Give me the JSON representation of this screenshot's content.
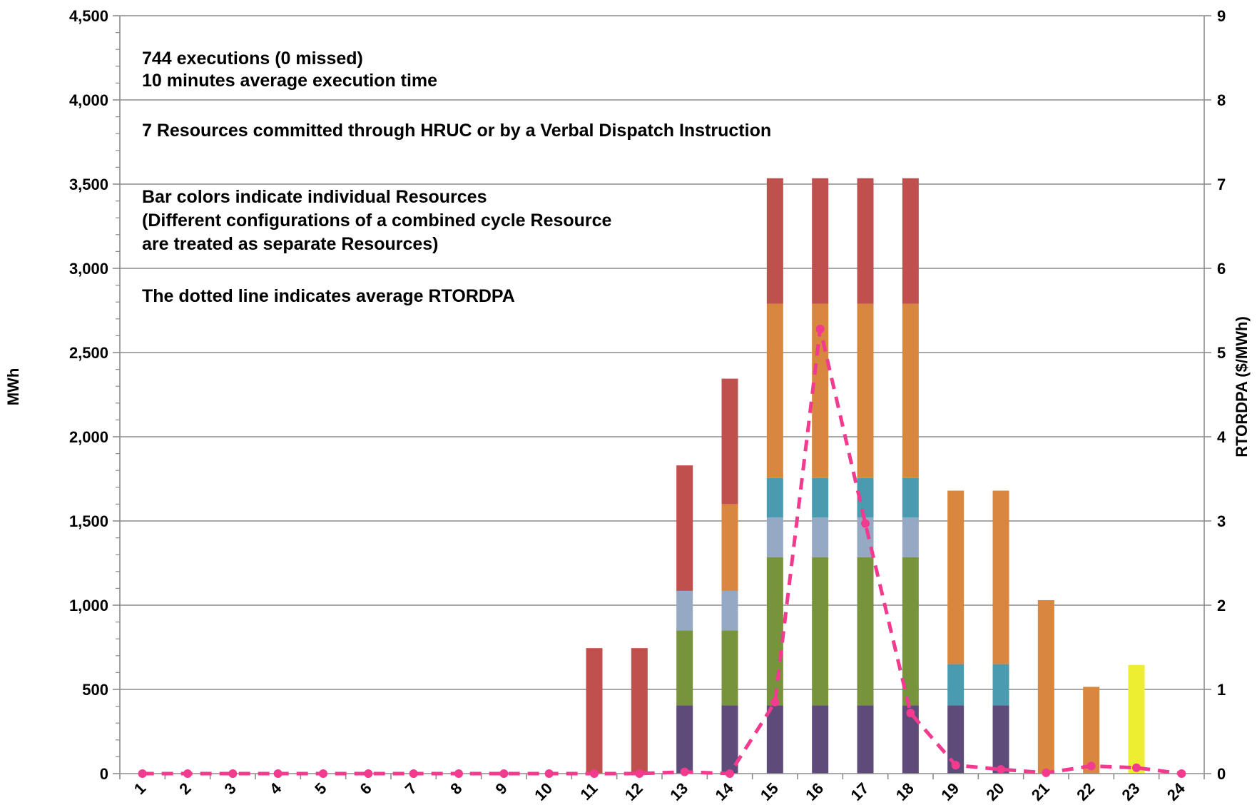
{
  "chart_data": {
    "type": "bar",
    "stacked": true,
    "categories": [
      "1",
      "2",
      "3",
      "4",
      "5",
      "6",
      "7",
      "8",
      "9",
      "10",
      "11",
      "12",
      "13",
      "14",
      "15",
      "16",
      "17",
      "18",
      "19",
      "20",
      "21",
      "22",
      "23",
      "24"
    ],
    "series": [
      {
        "color": "#5f4b7a",
        "values": [
          0,
          0,
          0,
          0,
          0,
          0,
          0,
          0,
          0,
          0,
          0,
          0,
          405,
          405,
          405,
          405,
          405,
          405,
          405,
          405,
          0,
          0,
          0,
          0
        ]
      },
      {
        "color": "#77933c",
        "values": [
          0,
          0,
          0,
          0,
          0,
          0,
          0,
          0,
          0,
          0,
          0,
          0,
          445,
          445,
          880,
          880,
          880,
          880,
          0,
          0,
          0,
          0,
          0,
          0
        ]
      },
      {
        "color": "#95a8c4",
        "values": [
          0,
          0,
          0,
          0,
          0,
          0,
          0,
          0,
          0,
          0,
          0,
          0,
          235,
          235,
          235,
          235,
          235,
          235,
          0,
          0,
          0,
          0,
          0,
          0
        ]
      },
      {
        "color": "#4a9bb0",
        "values": [
          0,
          0,
          0,
          0,
          0,
          0,
          0,
          0,
          0,
          0,
          0,
          0,
          0,
          0,
          235,
          235,
          235,
          235,
          245,
          245,
          0,
          0,
          0,
          0
        ]
      },
      {
        "color": "#d9863f",
        "values": [
          0,
          0,
          0,
          0,
          0,
          0,
          0,
          0,
          0,
          0,
          0,
          0,
          0,
          515,
          1035,
          1035,
          1035,
          1035,
          1030,
          1030,
          1030,
          515,
          0,
          0
        ]
      },
      {
        "color": "#c0504d",
        "values": [
          0,
          0,
          0,
          0,
          0,
          0,
          0,
          0,
          0,
          0,
          745,
          745,
          745,
          745,
          745,
          745,
          745,
          745,
          0,
          0,
          0,
          0,
          0,
          0
        ]
      },
      {
        "color": "#eded32",
        "values": [
          0,
          0,
          0,
          0,
          0,
          0,
          0,
          0,
          0,
          0,
          0,
          0,
          0,
          0,
          0,
          0,
          0,
          0,
          0,
          0,
          0,
          0,
          645,
          0
        ]
      }
    ],
    "line": {
      "color": "#f23a8f",
      "style": "dotted",
      "axis": "right",
      "values": [
        0,
        0,
        0,
        0,
        0,
        0,
        0,
        0,
        0,
        0,
        0,
        0,
        0.02,
        0,
        0.85,
        5.28,
        2.97,
        0.72,
        0.1,
        0.05,
        0.01,
        0.09,
        0.07,
        0
      ]
    },
    "ylabel": "MWh",
    "y2label": "RTORDPA ($/MWh)",
    "ylim": [
      0,
      4500
    ],
    "y2lim": [
      0,
      9
    ],
    "yticks": [
      "0",
      "500",
      "1,000",
      "1,500",
      "2,000",
      "2,500",
      "3,000",
      "3,500",
      "4,000",
      "4,500"
    ],
    "y2ticks": [
      "0",
      "1",
      "2",
      "3",
      "4",
      "5",
      "6",
      "7",
      "8",
      "9"
    ],
    "grid": true,
    "annotations": [
      "744 executions (0 missed)",
      "10 minutes average execution time",
      "7 Resources committed through HRUC or by a Verbal Dispatch Instruction",
      "Bar colors indicate individual Resources",
      "(Different configurations of a combined cycle Resource",
      "are treated as separate Resources)",
      "The dotted line indicates average RTORDPA"
    ]
  }
}
